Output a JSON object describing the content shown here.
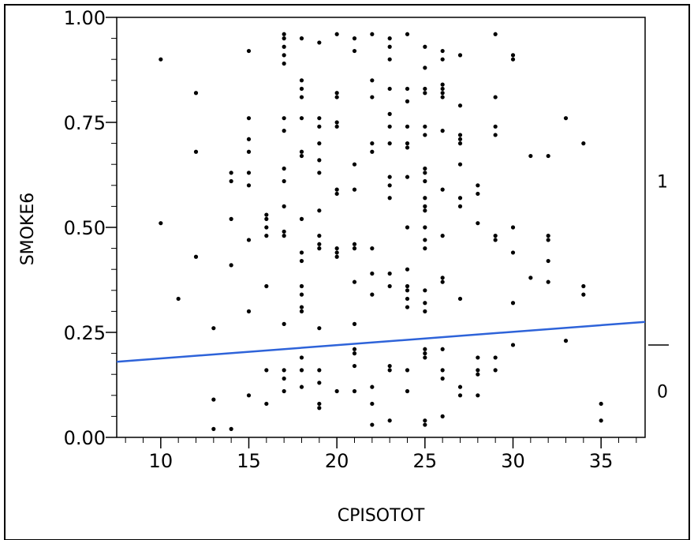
{
  "chart_data": {
    "type": "scatter",
    "xlabel": "CPISOTOT",
    "ylabel": "SMOKE6",
    "xlim": [
      7.5,
      37.5
    ],
    "ylim": [
      0,
      1
    ],
    "x_ticks": [
      10,
      15,
      20,
      25,
      30,
      35
    ],
    "x_tick_labels": [
      "10",
      "15",
      "20",
      "25",
      "30",
      "35"
    ],
    "y_ticks": [
      0,
      0.25,
      0.5,
      0.75,
      1
    ],
    "y_tick_labels": [
      "0.00",
      "0.25",
      "0.50",
      "0.75",
      "1.00"
    ],
    "right_axis": {
      "categories": [
        "1",
        "0"
      ],
      "category_positions": [
        0.61,
        0.11
      ],
      "divider": 0.22
    },
    "fit_line": {
      "x": [
        7.5,
        37.5
      ],
      "y": [
        0.18,
        0.275
      ],
      "color": "#2e63d9"
    },
    "series": [
      {
        "points": [
          [
            10,
            0.9
          ],
          [
            10,
            0.51
          ],
          [
            11,
            0.33
          ],
          [
            12,
            0.82
          ],
          [
            12,
            0.68
          ],
          [
            12,
            0.43
          ],
          [
            13,
            0.26
          ],
          [
            13,
            0.09
          ],
          [
            13,
            0.02
          ],
          [
            14,
            0.63
          ],
          [
            14,
            0.61
          ],
          [
            14,
            0.52
          ],
          [
            14,
            0.41
          ],
          [
            14,
            0.02
          ],
          [
            15,
            0.92
          ],
          [
            15,
            0.76
          ],
          [
            15,
            0.71
          ],
          [
            15,
            0.68
          ],
          [
            15,
            0.63
          ],
          [
            15,
            0.6
          ],
          [
            15,
            0.47
          ],
          [
            15,
            0.3
          ],
          [
            15,
            0.1
          ],
          [
            16,
            0.53
          ],
          [
            16,
            0.52
          ],
          [
            16,
            0.5
          ],
          [
            16,
            0.48
          ],
          [
            16,
            0.36
          ],
          [
            16,
            0.16
          ],
          [
            16,
            0.08
          ],
          [
            17,
            0.96
          ],
          [
            17,
            0.95
          ],
          [
            17,
            0.93
          ],
          [
            17,
            0.91
          ],
          [
            17,
            0.89
          ],
          [
            17,
            0.76
          ],
          [
            17,
            0.73
          ],
          [
            17,
            0.64
          ],
          [
            17,
            0.61
          ],
          [
            17,
            0.55
          ],
          [
            17,
            0.49
          ],
          [
            17,
            0.48
          ],
          [
            17,
            0.27
          ],
          [
            17,
            0.16
          ],
          [
            17,
            0.14
          ],
          [
            17,
            0.11
          ],
          [
            18,
            0.95
          ],
          [
            18,
            0.85
          ],
          [
            18,
            0.83
          ],
          [
            18,
            0.81
          ],
          [
            18,
            0.76
          ],
          [
            18,
            0.68
          ],
          [
            18,
            0.67
          ],
          [
            18,
            0.52
          ],
          [
            18,
            0.44
          ],
          [
            18,
            0.42
          ],
          [
            18,
            0.36
          ],
          [
            18,
            0.34
          ],
          [
            18,
            0.31
          ],
          [
            18,
            0.3
          ],
          [
            18,
            0.19
          ],
          [
            18,
            0.16
          ],
          [
            18,
            0.12
          ],
          [
            19,
            0.94
          ],
          [
            19,
            0.76
          ],
          [
            19,
            0.74
          ],
          [
            19,
            0.7
          ],
          [
            19,
            0.66
          ],
          [
            19,
            0.63
          ],
          [
            19,
            0.54
          ],
          [
            19,
            0.48
          ],
          [
            19,
            0.46
          ],
          [
            19,
            0.45
          ],
          [
            19,
            0.26
          ],
          [
            19,
            0.16
          ],
          [
            19,
            0.13
          ],
          [
            19,
            0.08
          ],
          [
            19,
            0.07
          ],
          [
            20,
            0.96
          ],
          [
            20,
            0.82
          ],
          [
            20,
            0.81
          ],
          [
            20,
            0.75
          ],
          [
            20,
            0.74
          ],
          [
            20,
            0.59
          ],
          [
            20,
            0.58
          ],
          [
            20,
            0.45
          ],
          [
            20,
            0.44
          ],
          [
            20,
            0.43
          ],
          [
            20,
            0.11
          ],
          [
            21,
            0.95
          ],
          [
            21,
            0.92
          ],
          [
            21,
            0.65
          ],
          [
            21,
            0.59
          ],
          [
            21,
            0.46
          ],
          [
            21,
            0.45
          ],
          [
            21,
            0.37
          ],
          [
            21,
            0.27
          ],
          [
            21,
            0.21
          ],
          [
            21,
            0.2
          ],
          [
            21,
            0.17
          ],
          [
            21,
            0.11
          ],
          [
            22,
            0.96
          ],
          [
            22,
            0.85
          ],
          [
            22,
            0.81
          ],
          [
            22,
            0.7
          ],
          [
            22,
            0.68
          ],
          [
            22,
            0.45
          ],
          [
            22,
            0.39
          ],
          [
            22,
            0.34
          ],
          [
            22,
            0.12
          ],
          [
            22,
            0.08
          ],
          [
            22,
            0.03
          ],
          [
            23,
            0.95
          ],
          [
            23,
            0.93
          ],
          [
            23,
            0.9
          ],
          [
            23,
            0.83
          ],
          [
            23,
            0.77
          ],
          [
            23,
            0.74
          ],
          [
            23,
            0.7
          ],
          [
            23,
            0.62
          ],
          [
            23,
            0.6
          ],
          [
            23,
            0.57
          ],
          [
            23,
            0.39
          ],
          [
            23,
            0.36
          ],
          [
            23,
            0.17
          ],
          [
            23,
            0.16
          ],
          [
            23,
            0.04
          ],
          [
            24,
            0.96
          ],
          [
            24,
            0.83
          ],
          [
            24,
            0.8
          ],
          [
            24,
            0.74
          ],
          [
            24,
            0.7
          ],
          [
            24,
            0.69
          ],
          [
            24,
            0.62
          ],
          [
            24,
            0.5
          ],
          [
            24,
            0.4
          ],
          [
            24,
            0.36
          ],
          [
            24,
            0.35
          ],
          [
            24,
            0.33
          ],
          [
            24,
            0.31
          ],
          [
            24,
            0.16
          ],
          [
            24,
            0.11
          ],
          [
            25,
            0.93
          ],
          [
            25,
            0.88
          ],
          [
            25,
            0.83
          ],
          [
            25,
            0.82
          ],
          [
            25,
            0.74
          ],
          [
            25,
            0.72
          ],
          [
            25,
            0.64
          ],
          [
            25,
            0.63
          ],
          [
            25,
            0.61
          ],
          [
            25,
            0.57
          ],
          [
            25,
            0.55
          ],
          [
            25,
            0.54
          ],
          [
            25,
            0.5
          ],
          [
            25,
            0.47
          ],
          [
            25,
            0.45
          ],
          [
            25,
            0.35
          ],
          [
            25,
            0.32
          ],
          [
            25,
            0.3
          ],
          [
            25,
            0.21
          ],
          [
            25,
            0.2
          ],
          [
            25,
            0.19
          ],
          [
            25,
            0.04
          ],
          [
            25,
            0.03
          ],
          [
            26,
            0.92
          ],
          [
            26,
            0.9
          ],
          [
            26,
            0.84
          ],
          [
            26,
            0.83
          ],
          [
            26,
            0.82
          ],
          [
            26,
            0.81
          ],
          [
            26,
            0.73
          ],
          [
            26,
            0.59
          ],
          [
            26,
            0.48
          ],
          [
            26,
            0.38
          ],
          [
            26,
            0.37
          ],
          [
            26,
            0.21
          ],
          [
            26,
            0.16
          ],
          [
            26,
            0.14
          ],
          [
            26,
            0.05
          ],
          [
            27,
            0.91
          ],
          [
            27,
            0.79
          ],
          [
            27,
            0.72
          ],
          [
            27,
            0.71
          ],
          [
            27,
            0.7
          ],
          [
            27,
            0.65
          ],
          [
            27,
            0.57
          ],
          [
            27,
            0.55
          ],
          [
            27,
            0.33
          ],
          [
            27,
            0.12
          ],
          [
            27,
            0.1
          ],
          [
            28,
            0.6
          ],
          [
            28,
            0.58
          ],
          [
            28,
            0.51
          ],
          [
            28,
            0.19
          ],
          [
            28,
            0.16
          ],
          [
            28,
            0.15
          ],
          [
            28,
            0.1
          ],
          [
            29,
            0.96
          ],
          [
            29,
            0.81
          ],
          [
            29,
            0.74
          ],
          [
            29,
            0.72
          ],
          [
            29,
            0.48
          ],
          [
            29,
            0.47
          ],
          [
            29,
            0.19
          ],
          [
            29,
            0.16
          ],
          [
            30,
            0.91
          ],
          [
            30,
            0.9
          ],
          [
            30,
            0.5
          ],
          [
            30,
            0.44
          ],
          [
            30,
            0.32
          ],
          [
            30,
            0.22
          ],
          [
            31,
            0.67
          ],
          [
            31,
            0.38
          ],
          [
            32,
            0.67
          ],
          [
            32,
            0.48
          ],
          [
            32,
            0.47
          ],
          [
            32,
            0.42
          ],
          [
            32,
            0.37
          ],
          [
            33,
            0.76
          ],
          [
            33,
            0.23
          ],
          [
            34,
            0.7
          ],
          [
            34,
            0.36
          ],
          [
            34,
            0.34
          ],
          [
            35,
            0.08
          ],
          [
            35,
            0.04
          ]
        ]
      }
    ]
  }
}
